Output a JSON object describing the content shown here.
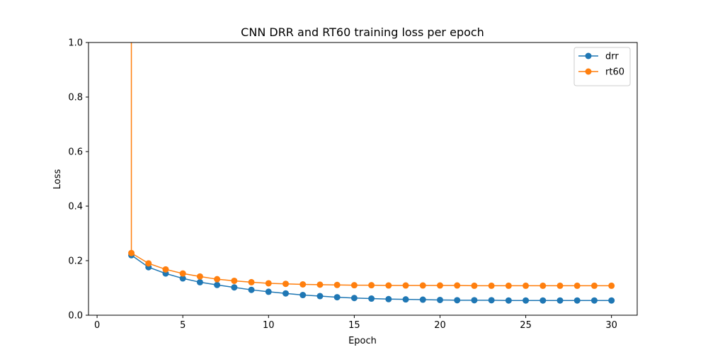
{
  "chart_data": {
    "type": "line",
    "title": "CNN DRR and RT60 training loss per epoch",
    "xlabel": "Epoch",
    "ylabel": "Loss",
    "xlim": [
      -0.5,
      31.5
    ],
    "ylim": [
      0,
      1.0
    ],
    "x_ticks": [
      0,
      5,
      10,
      15,
      20,
      25,
      30
    ],
    "x_tick_labels": [
      "0",
      "5",
      "10",
      "15",
      "20",
      "25",
      "30"
    ],
    "y_ticks": [
      0,
      0.2,
      0.4,
      0.6,
      0.8,
      1.0
    ],
    "y_tick_labels": [
      "0.0",
      "0.2",
      "0.4",
      "0.6",
      "0.8",
      "1.0"
    ],
    "grid": false,
    "legend": "top-right",
    "x": [
      2,
      3,
      4,
      5,
      6,
      7,
      8,
      9,
      10,
      11,
      12,
      13,
      14,
      15,
      16,
      17,
      18,
      19,
      20,
      21,
      22,
      23,
      24,
      25,
      26,
      27,
      28,
      29,
      30
    ],
    "series": [
      {
        "name": "drr",
        "color": "#1f77b4",
        "marker": "circle",
        "values": [
          0.22,
          0.176,
          0.153,
          0.135,
          0.121,
          0.111,
          0.102,
          0.093,
          0.086,
          0.08,
          0.074,
          0.07,
          0.066,
          0.063,
          0.061,
          0.059,
          0.058,
          0.057,
          0.056,
          0.055,
          0.055,
          0.055,
          0.054,
          0.054,
          0.054,
          0.054,
          0.054,
          0.054,
          0.054
        ]
      },
      {
        "name": "rt60",
        "color": "#ff7f0e",
        "marker": "circle",
        "values": [
          0.228,
          0.19,
          0.168,
          0.153,
          0.142,
          0.132,
          0.126,
          0.121,
          0.117,
          0.115,
          0.113,
          0.112,
          0.111,
          0.11,
          0.11,
          0.109,
          0.109,
          0.109,
          0.109,
          0.109,
          0.108,
          0.108,
          0.108,
          0.108,
          0.108,
          0.108,
          0.108,
          0.108,
          0.108
        ],
        "clipped_above_axis_at_x": 2
      }
    ]
  }
}
